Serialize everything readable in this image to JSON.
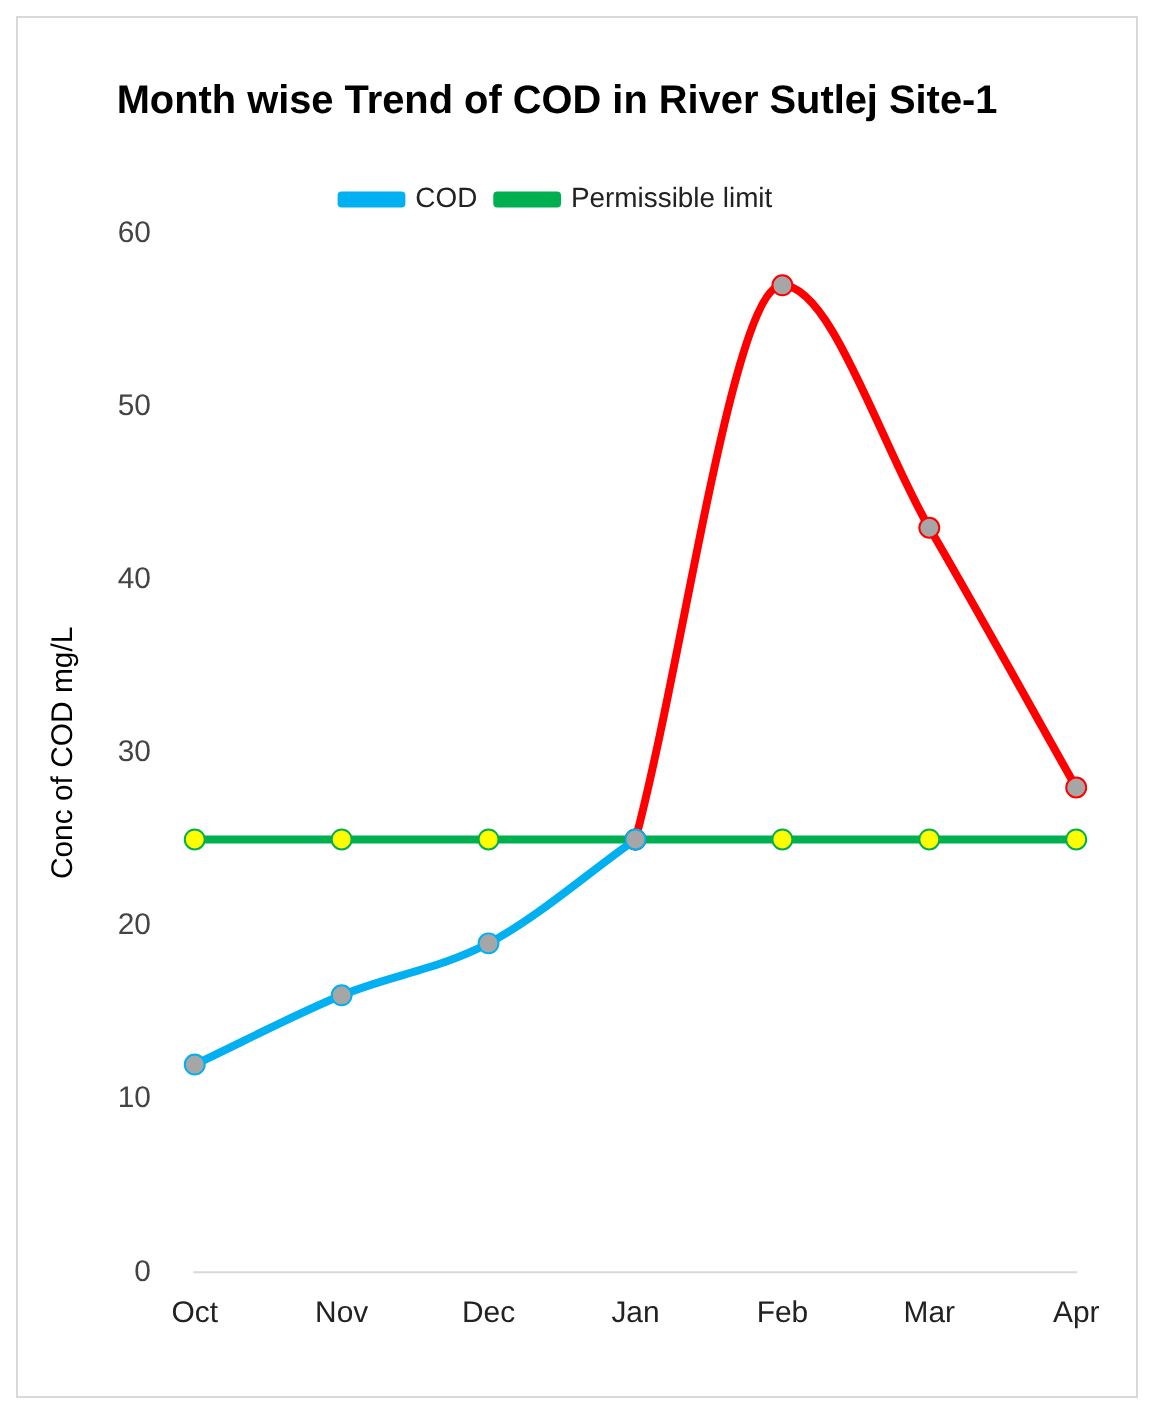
{
  "chart_data": {
    "type": "line",
    "title": "Month wise Trend of COD in River Sutlej Site-1",
    "ylabel": "Conc of COD mg/L",
    "categories": [
      "Oct",
      "Nov",
      "Dec",
      "Jan",
      "Feb",
      "Mar",
      "Apr"
    ],
    "series": [
      {
        "name": "COD",
        "color": "#00b0f0",
        "values": [
          12,
          16,
          19,
          25,
          null,
          null,
          null
        ]
      },
      {
        "color": "#ff0000",
        "values": [
          null,
          null,
          null,
          25,
          57,
          43,
          28
        ]
      },
      {
        "name": "Permissible limit",
        "color": "#00b050",
        "values": [
          25,
          25,
          25,
          25,
          25,
          25,
          25
        ]
      }
    ],
    "ylim": [
      0,
      60
    ],
    "yticks": [
      0,
      10,
      20,
      30,
      40,
      50,
      60
    ],
    "grid": false,
    "legend": "top",
    "marker": "circle"
  }
}
